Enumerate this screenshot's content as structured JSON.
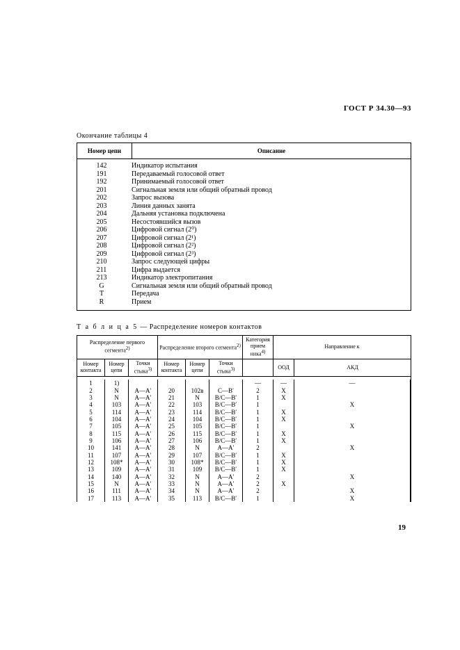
{
  "doc_code": "ГОСТ Р 34.30—93",
  "page_number": "19",
  "table4": {
    "caption": "Окончание таблицы 4",
    "col1_header": "Номер цепи",
    "col2_header": "Описание",
    "rows": [
      {
        "n": "142",
        "d": "Индикатор испытания"
      },
      {
        "n": "191",
        "d": "Передаваемый голосовой ответ"
      },
      {
        "n": "192",
        "d": "Принимаемый голосовой ответ"
      },
      {
        "n": "201",
        "d": "Сигнальная земля или общий обратный провод"
      },
      {
        "n": "202",
        "d": "Запрос вызова"
      },
      {
        "n": "203",
        "d": "Линия данных занята"
      },
      {
        "n": "204",
        "d": "Дальняя установка подключена"
      },
      {
        "n": "205",
        "d": "Несостоявшийся вызов"
      },
      {
        "n": "206",
        "d": "Цифровой сигнал (2⁰)"
      },
      {
        "n": "207",
        "d": "Цифровой сигнал (2¹)"
      },
      {
        "n": "208",
        "d": "Цифровой сигнал (2²)"
      },
      {
        "n": "209",
        "d": "Цифровой сигнал (2³)"
      },
      {
        "n": "210",
        "d": "Запрос следующей цифры"
      },
      {
        "n": "211",
        "d": "Цифра выдается"
      },
      {
        "n": "213",
        "d": "Индикатор электропитания"
      },
      {
        "n": "G",
        "d": "Сигнальная земля или общий обратный провод"
      },
      {
        "n": "T",
        "d": "Передача"
      },
      {
        "n": "R",
        "d": "Прием"
      }
    ]
  },
  "table5": {
    "caption_prefix": "Т а б л и ц а 5",
    "caption_rest": " — Распределение номеров контактов",
    "group_h1": "Распределение первого сегмента",
    "group_h2": "Распределение второго сегмента",
    "group_sup": "2)",
    "kat_h1": "Категория",
    "kat_h2": "прием ника",
    "kat_sup": "4)",
    "dir_h": "Направление к",
    "sub_nk": "Номер контакта",
    "sub_nc": "Номер цепи",
    "sub_pt": "Точки стыка",
    "sub_pt_sup": "3)",
    "sub_ood": "ООД",
    "sub_akd": "АКД",
    "rows": [
      {
        "nk1": "1",
        "nc1": "1)",
        "pt1": "",
        "nk2": "",
        "nc2": "",
        "pt2": "",
        "kat": "—",
        "ood": "—",
        "akd": "—"
      },
      {
        "nk1": "2",
        "nc1": "N",
        "pt1": "A—A′",
        "nk2": "20",
        "nc2": "102в",
        "pt2": "С—B′",
        "kat": "2",
        "ood": "X",
        "akd": ""
      },
      {
        "nk1": "3",
        "nc1": "N",
        "pt1": "A—A′",
        "nk2": "21",
        "nc2": "N",
        "pt2": "B/C—B′",
        "kat": "1",
        "ood": "X",
        "akd": ""
      },
      {
        "nk1": "4",
        "nc1": "103",
        "pt1": "A—A′",
        "nk2": "22",
        "nc2": "103",
        "pt2": "B/C—B′",
        "kat": "1",
        "ood": "",
        "akd": "X"
      },
      {
        "nk1": "5",
        "nc1": "114",
        "pt1": "A—A′",
        "nk2": "23",
        "nc2": "114",
        "pt2": "B/C—B′",
        "kat": "1",
        "ood": "X",
        "akd": ""
      },
      {
        "nk1": "6",
        "nc1": "104",
        "pt1": "A—A′",
        "nk2": "24",
        "nc2": "104",
        "pt2": "B/C—B′",
        "kat": "1",
        "ood": "X",
        "akd": ""
      },
      {
        "nk1": "7",
        "nc1": "105",
        "pt1": "A—A′",
        "nk2": "25",
        "nc2": "105",
        "pt2": "B/C—B′",
        "kat": "1",
        "ood": "",
        "akd": "X"
      },
      {
        "nk1": "8",
        "nc1": "115",
        "pt1": "A—A′",
        "nk2": "26",
        "nc2": "115",
        "pt2": "B/C—B′",
        "kat": "1",
        "ood": "X",
        "akd": ""
      },
      {
        "nk1": "9",
        "nc1": "106",
        "pt1": "A—A′",
        "nk2": "27",
        "nc2": "106",
        "pt2": "B/C—B′",
        "kat": "1",
        "ood": "X",
        "akd": ""
      },
      {
        "nk1": "10",
        "nc1": "141",
        "pt1": "A—A′",
        "nk2": "28",
        "nc2": "N",
        "pt2": "A—A′",
        "kat": "2",
        "ood": "",
        "akd": "X"
      },
      {
        "nk1": "11",
        "nc1": "107",
        "pt1": "A—A′",
        "nk2": "29",
        "nc2": "107",
        "pt2": "B/C—B′",
        "kat": "1",
        "ood": "X",
        "akd": ""
      },
      {
        "nk1": "12",
        "nc1": "108*",
        "pt1": "A—A′",
        "nk2": "30",
        "nc2": "108*",
        "pt2": "B/C—B′",
        "kat": "1",
        "ood": "X",
        "akd": ""
      },
      {
        "nk1": "13",
        "nc1": "109",
        "pt1": "A—A′",
        "nk2": "31",
        "nc2": "109",
        "pt2": "B/C—B′",
        "kat": "1",
        "ood": "X",
        "akd": ""
      },
      {
        "nk1": "14",
        "nc1": "140",
        "pt1": "A—A′",
        "nk2": "32",
        "nc2": "N",
        "pt2": "A—A′",
        "kat": "2",
        "ood": "",
        "akd": "X"
      },
      {
        "nk1": "15",
        "nc1": "N",
        "pt1": "A—A′",
        "nk2": "33",
        "nc2": "N",
        "pt2": "A—A′",
        "kat": "2",
        "ood": "X",
        "akd": ""
      },
      {
        "nk1": "16",
        "nc1": "111",
        "pt1": "A—A′",
        "nk2": "34",
        "nc2": "N",
        "pt2": "A—A′",
        "kat": "2",
        "ood": "",
        "akd": "X"
      },
      {
        "nk1": "17",
        "nc1": "113",
        "pt1": "A—A′",
        "nk2": "35",
        "nc2": "113",
        "pt2": "B/C—B′",
        "kat": "1",
        "ood": "",
        "akd": "X"
      }
    ]
  }
}
